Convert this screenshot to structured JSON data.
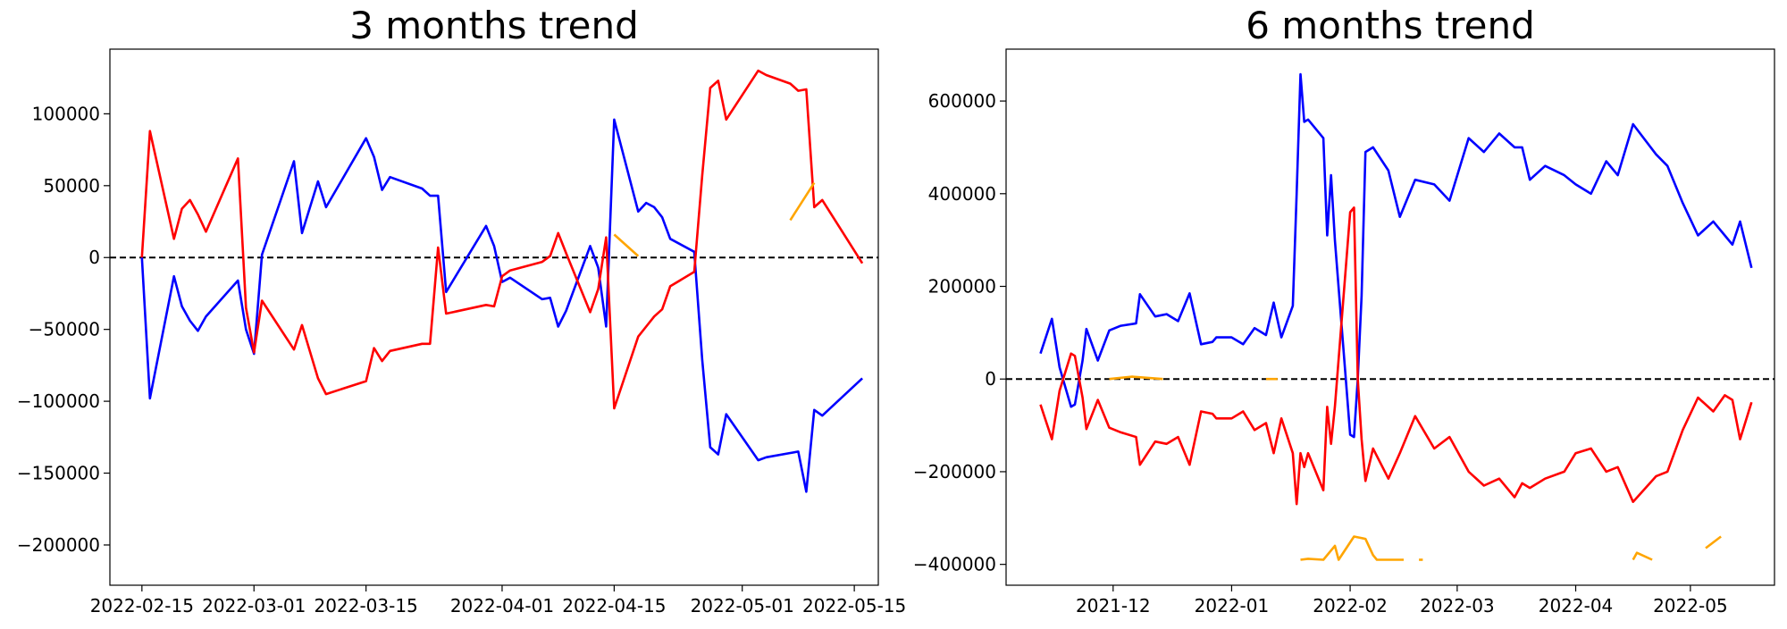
{
  "chart_data": [
    {
      "type": "line",
      "title": "3 months trend",
      "xlabel": "",
      "ylabel": "",
      "x_type": "date",
      "xlim": [
        "2022-02-11",
        "2022-05-18"
      ],
      "ylim": [
        -228000,
        145000
      ],
      "xticks": [
        "2022-02-15",
        "2022-03-01",
        "2022-03-15",
        "2022-04-01",
        "2022-04-15",
        "2022-05-01",
        "2022-05-15"
      ],
      "yticks": [
        -200000,
        -150000,
        -100000,
        -50000,
        0,
        50000,
        100000
      ],
      "ytick_labels": [
        "−200000",
        "−150000",
        "−100000",
        "−50000",
        "0",
        "50000",
        "100000"
      ],
      "reference_line": 0,
      "series": [
        {
          "color": "#0000ff",
          "x": [
            "2022-02-15",
            "2022-02-16",
            "2022-02-19",
            "2022-02-20",
            "2022-02-21",
            "2022-02-22",
            "2022-02-23",
            "2022-02-27",
            "2022-02-28",
            "2022-03-01",
            "2022-03-02",
            "2022-03-06",
            "2022-03-07",
            "2022-03-09",
            "2022-03-10",
            "2022-03-15",
            "2022-03-16",
            "2022-03-17",
            "2022-03-18",
            "2022-03-22",
            "2022-03-23",
            "2022-03-24",
            "2022-03-25",
            "2022-03-30",
            "2022-03-31",
            "2022-04-01",
            "2022-04-02",
            "2022-04-06",
            "2022-04-07",
            "2022-04-08",
            "2022-04-09",
            "2022-04-12",
            "2022-04-13",
            "2022-04-14",
            "2022-04-15",
            "2022-04-18",
            "2022-04-19",
            "2022-04-20",
            "2022-04-21",
            "2022-04-22",
            "2022-04-25",
            "2022-04-26",
            "2022-04-27",
            "2022-04-28",
            "2022-04-29",
            "2022-05-03",
            "2022-05-04",
            "2022-05-07",
            "2022-05-08",
            "2022-05-09",
            "2022-05-10",
            "2022-05-11",
            "2022-05-16"
          ],
          "y": [
            0,
            -98000,
            -13000,
            -34000,
            -44000,
            -51000,
            -41000,
            -16000,
            -50000,
            -67000,
            2000,
            67000,
            17000,
            53000,
            35000,
            83000,
            70000,
            47000,
            56000,
            48000,
            43000,
            43000,
            -24000,
            22000,
            8000,
            -17000,
            -14000,
            -29000,
            -28000,
            -48000,
            -37000,
            8000,
            -7000,
            -48000,
            96000,
            32000,
            38000,
            35000,
            28000,
            13000,
            4000,
            -71000,
            -132000,
            -137000,
            -109000,
            -141000,
            -139000,
            -136000,
            -135000,
            -163000,
            -106000,
            -110000,
            -84000
          ]
        },
        {
          "color": "#ff0000",
          "x": [
            "2022-02-15",
            "2022-02-16",
            "2022-02-19",
            "2022-02-20",
            "2022-02-21",
            "2022-02-22",
            "2022-02-23",
            "2022-02-27",
            "2022-02-28",
            "2022-03-01",
            "2022-03-02",
            "2022-03-06",
            "2022-03-07",
            "2022-03-09",
            "2022-03-10",
            "2022-03-15",
            "2022-03-16",
            "2022-03-17",
            "2022-03-18",
            "2022-03-22",
            "2022-03-23",
            "2022-03-24",
            "2022-03-25",
            "2022-03-30",
            "2022-03-31",
            "2022-04-01",
            "2022-04-02",
            "2022-04-06",
            "2022-04-07",
            "2022-04-08",
            "2022-04-09",
            "2022-04-12",
            "2022-04-13",
            "2022-04-14",
            "2022-04-15",
            "2022-04-18",
            "2022-04-19",
            "2022-04-20",
            "2022-04-21",
            "2022-04-22",
            "2022-04-25",
            "2022-04-26",
            "2022-04-27",
            "2022-04-28",
            "2022-04-29",
            "2022-05-03",
            "2022-05-04",
            "2022-05-07",
            "2022-05-08",
            "2022-05-09",
            "2022-05-10",
            "2022-05-11",
            "2022-05-16"
          ],
          "y": [
            0,
            88000,
            13000,
            34000,
            40000,
            30000,
            18000,
            69000,
            -35000,
            -66000,
            -30000,
            -64000,
            -47000,
            -84000,
            -95000,
            -86000,
            -63000,
            -72000,
            -65000,
            -60000,
            -60000,
            7000,
            -39000,
            -33000,
            -34000,
            -13000,
            -9000,
            -3000,
            1000,
            17000,
            3000,
            -38000,
            -22000,
            14000,
            -105000,
            -55000,
            -48000,
            -41000,
            -36000,
            -20000,
            -10000,
            57000,
            118000,
            123000,
            96000,
            130000,
            127000,
            121000,
            116000,
            117000,
            35000,
            40000,
            -4000
          ]
        },
        {
          "color": "#ffa500",
          "segments": [
            {
              "x": [
                "2022-04-15",
                "2022-04-18"
              ],
              "y": [
                16000,
                1000
              ]
            },
            {
              "x": [
                "2022-05-07",
                "2022-05-10"
              ],
              "y": [
                26000,
                52000
              ]
            }
          ]
        }
      ]
    },
    {
      "type": "line",
      "title": "6 months trend",
      "xlabel": "",
      "ylabel": "",
      "x_type": "date",
      "xlim": [
        "2021-11-03",
        "2022-05-23"
      ],
      "ylim": [
        -445000,
        712000
      ],
      "xticks": [
        "2021-12-01",
        "2022-01-01",
        "2022-02-01",
        "2022-03-01",
        "2022-04-01",
        "2022-05-01"
      ],
      "xtick_labels": [
        "2021-12",
        "2022-01",
        "2022-02",
        "2022-03",
        "2022-04",
        "2022-05"
      ],
      "yticks": [
        -400000,
        -200000,
        0,
        200000,
        400000,
        600000
      ],
      "ytick_labels": [
        "−400000",
        "−200000",
        "0",
        "200000",
        "400000",
        "600000"
      ],
      "reference_line": 0,
      "series": [
        {
          "color": "#0000ff",
          "x": [
            "2021-11-12",
            "2021-11-15",
            "2021-11-17",
            "2021-11-20",
            "2021-11-21",
            "2021-11-23",
            "2021-11-24",
            "2021-11-27",
            "2021-11-30",
            "2021-12-03",
            "2021-12-07",
            "2021-12-08",
            "2021-12-12",
            "2021-12-15",
            "2021-12-18",
            "2021-12-21",
            "2021-12-24",
            "2021-12-27",
            "2021-12-28",
            "2022-01-01",
            "2022-01-04",
            "2022-01-07",
            "2022-01-10",
            "2022-01-12",
            "2022-01-14",
            "2022-01-17",
            "2022-01-18",
            "2022-01-19",
            "2022-01-20",
            "2022-01-21",
            "2022-01-25",
            "2022-01-26",
            "2022-01-27",
            "2022-01-28",
            "2022-02-01",
            "2022-02-02",
            "2022-02-03",
            "2022-02-04",
            "2022-02-05",
            "2022-02-07",
            "2022-02-11",
            "2022-02-14",
            "2022-02-18",
            "2022-02-23",
            "2022-02-27",
            "2022-03-04",
            "2022-03-08",
            "2022-03-12",
            "2022-03-16",
            "2022-03-18",
            "2022-03-20",
            "2022-03-24",
            "2022-03-29",
            "2022-04-01",
            "2022-04-05",
            "2022-04-09",
            "2022-04-12",
            "2022-04-16",
            "2022-04-22",
            "2022-04-25",
            "2022-04-29",
            "2022-05-03",
            "2022-05-07",
            "2022-05-10",
            "2022-05-12",
            "2022-05-14",
            "2022-05-17"
          ],
          "y": [
            55000,
            130000,
            25000,
            -60000,
            -55000,
            40000,
            108000,
            40000,
            105000,
            115000,
            120000,
            183000,
            135000,
            140000,
            125000,
            185000,
            75000,
            80000,
            90000,
            90000,
            75000,
            110000,
            95000,
            165000,
            90000,
            158000,
            400000,
            658000,
            555000,
            560000,
            520000,
            310000,
            440000,
            300000,
            -120000,
            -125000,
            0,
            180000,
            490000,
            500000,
            450000,
            350000,
            430000,
            420000,
            385000,
            520000,
            490000,
            530000,
            500000,
            500000,
            430000,
            460000,
            440000,
            420000,
            400000,
            470000,
            440000,
            550000,
            485000,
            460000,
            380000,
            310000,
            340000,
            310000,
            290000,
            340000,
            240000
          ]
        },
        {
          "color": "#ff0000",
          "x": [
            "2021-11-12",
            "2021-11-15",
            "2021-11-17",
            "2021-11-20",
            "2021-11-21",
            "2021-11-23",
            "2021-11-24",
            "2021-11-27",
            "2021-11-30",
            "2021-12-03",
            "2021-12-07",
            "2021-12-08",
            "2021-12-12",
            "2021-12-15",
            "2021-12-18",
            "2021-12-21",
            "2021-12-24",
            "2021-12-27",
            "2021-12-28",
            "2022-01-01",
            "2022-01-04",
            "2022-01-07",
            "2022-01-10",
            "2022-01-12",
            "2022-01-14",
            "2022-01-17",
            "2022-01-18",
            "2022-01-19",
            "2022-01-20",
            "2022-01-21",
            "2022-01-25",
            "2022-01-26",
            "2022-01-27",
            "2022-01-28",
            "2022-02-01",
            "2022-02-02",
            "2022-02-03",
            "2022-02-04",
            "2022-02-05",
            "2022-02-07",
            "2022-02-11",
            "2022-02-14",
            "2022-02-18",
            "2022-02-23",
            "2022-02-27",
            "2022-03-04",
            "2022-03-08",
            "2022-03-12",
            "2022-03-16",
            "2022-03-18",
            "2022-03-20",
            "2022-03-24",
            "2022-03-29",
            "2022-04-01",
            "2022-04-05",
            "2022-04-09",
            "2022-04-12",
            "2022-04-16",
            "2022-04-22",
            "2022-04-25",
            "2022-04-29",
            "2022-05-03",
            "2022-05-07",
            "2022-05-10",
            "2022-05-12",
            "2022-05-14",
            "2022-05-17"
          ],
          "y": [
            -55000,
            -130000,
            -25000,
            55000,
            50000,
            -40000,
            -108000,
            -45000,
            -105000,
            -115000,
            -125000,
            -185000,
            -135000,
            -140000,
            -125000,
            -185000,
            -70000,
            -75000,
            -85000,
            -85000,
            -70000,
            -110000,
            -95000,
            -160000,
            -85000,
            -160000,
            -270000,
            -160000,
            -190000,
            -160000,
            -240000,
            -60000,
            -140000,
            -60000,
            360000,
            370000,
            0,
            -130000,
            -220000,
            -150000,
            -215000,
            -160000,
            -80000,
            -150000,
            -125000,
            -200000,
            -230000,
            -215000,
            -255000,
            -225000,
            -235000,
            -215000,
            -200000,
            -160000,
            -150000,
            -200000,
            -190000,
            -265000,
            -210000,
            -200000,
            -110000,
            -40000,
            -70000,
            -35000,
            -45000,
            -130000,
            -50000
          ]
        },
        {
          "color": "#ffa500",
          "segments": [
            {
              "x": [
                "2021-11-30",
                "2021-12-06",
                "2021-12-14"
              ],
              "y": [
                0,
                5000,
                0
              ]
            },
            {
              "x": [
                "2022-01-10",
                "2022-01-13"
              ],
              "y": [
                0,
                0
              ]
            },
            {
              "x": [
                "2022-01-19",
                "2022-01-21",
                "2022-01-25",
                "2022-01-28",
                "2022-01-29",
                "2022-02-02",
                "2022-02-05",
                "2022-02-07",
                "2022-02-08",
                "2022-02-15"
              ],
              "y": [
                -390000,
                -388000,
                -390000,
                -360000,
                -390000,
                -340000,
                -345000,
                -380000,
                -390000,
                -390000
              ]
            },
            {
              "x": [
                "2022-02-19",
                "2022-02-20"
              ],
              "y": [
                -390000,
                -390000
              ]
            },
            {
              "x": [
                "2022-04-16",
                "2022-04-17",
                "2022-04-21"
              ],
              "y": [
                -390000,
                -375000,
                -390000
              ]
            },
            {
              "x": [
                "2022-05-05",
                "2022-05-09"
              ],
              "y": [
                -365000,
                -340000
              ]
            }
          ]
        }
      ]
    }
  ]
}
